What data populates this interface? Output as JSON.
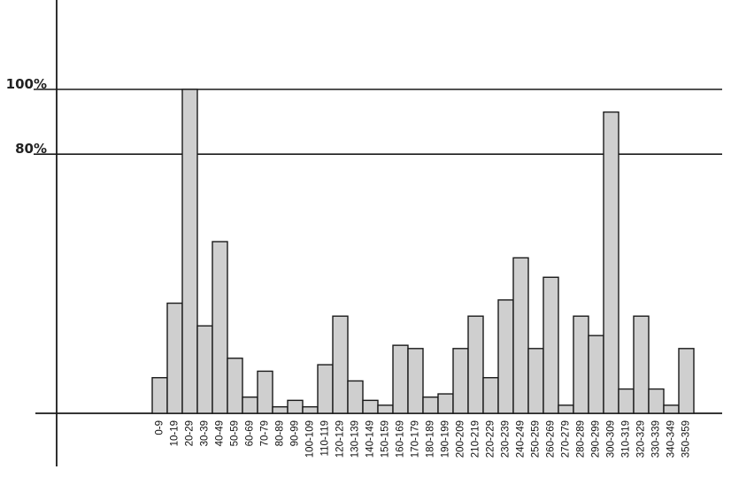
{
  "chart_data": {
    "type": "bar",
    "title": "",
    "xlabel": "",
    "ylabel": "",
    "ylim": [
      0,
      100
    ],
    "y_reference_lines": [
      {
        "value": 100,
        "label": "100%"
      },
      {
        "value": 80,
        "label": "80%"
      }
    ],
    "categories": [
      "0-9",
      "10-19",
      "20-29",
      "30-39",
      "40-49",
      "50-59",
      "60-69",
      "70-79",
      "80-89",
      "90-99",
      "100-109",
      "110-119",
      "120-129",
      "130-139",
      "140-149",
      "150-159",
      "160-169",
      "170-179",
      "180-189",
      "190-199",
      "200-209",
      "210-219",
      "220-229",
      "230-239",
      "240-249",
      "250-259",
      "260-269",
      "270-279",
      "280-289",
      "290-299",
      "300-309",
      "310-319",
      "320-329",
      "330-339",
      "340-349",
      "350-359"
    ],
    "values": [
      11,
      34,
      100,
      27,
      53,
      17,
      5,
      13,
      2,
      4,
      2,
      15,
      30,
      10,
      4,
      2.5,
      21,
      20,
      5,
      6,
      20,
      30,
      11,
      35,
      48,
      20,
      42,
      2.5,
      30,
      24,
      93,
      7.5,
      30,
      7.5,
      2.5,
      20
    ],
    "grid": false,
    "colors": {
      "bar_fill": "#cfcfcf",
      "bar_stroke": "#1a1a1a",
      "axis": "#1a1a1a"
    }
  }
}
